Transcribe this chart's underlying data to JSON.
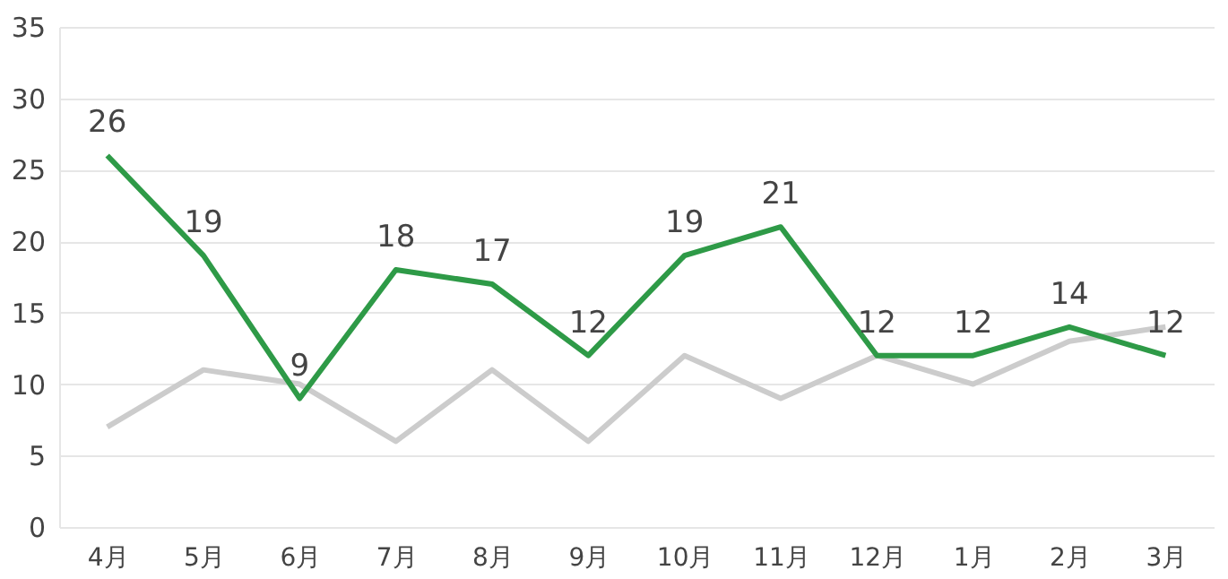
{
  "chart_data": {
    "type": "line",
    "categories": [
      "4月",
      "5月",
      "6月",
      "7月",
      "8月",
      "9月",
      "10月",
      "11月",
      "12月",
      "1月",
      "2月",
      "3月"
    ],
    "series": [
      {
        "color": "#cccccc",
        "values": [
          7,
          11,
          10,
          6,
          11,
          6,
          12,
          9,
          12,
          10,
          13,
          14
        ]
      },
      {
        "color": "#2e9a47",
        "values": [
          26,
          19,
          9,
          18,
          17,
          12,
          19,
          21,
          12,
          12,
          14,
          12
        ],
        "value_labels": [
          "26",
          "19",
          "9",
          "18",
          "17",
          "12",
          "19",
          "21",
          "12",
          "12",
          "14",
          "12"
        ]
      }
    ],
    "ylim": [
      0,
      35
    ],
    "yticks": [
      0,
      5,
      10,
      15,
      20,
      25,
      30,
      35
    ],
    "grid": "y",
    "marker": "none",
    "line_style": "solid"
  }
}
